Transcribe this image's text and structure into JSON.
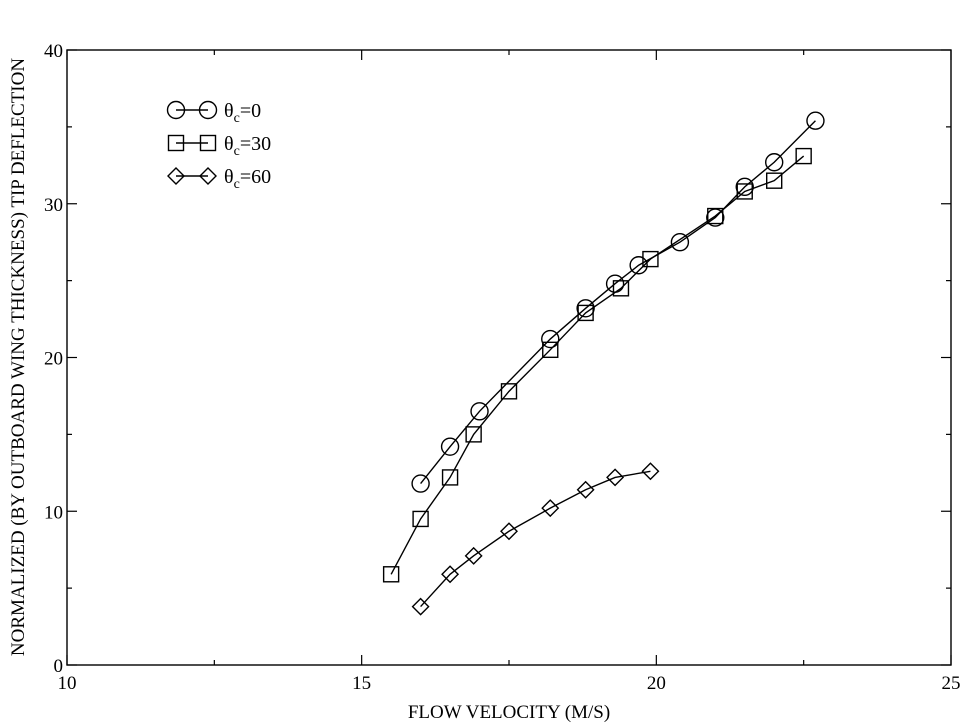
{
  "chart_data": {
    "type": "line",
    "xlabel": "FLOW VELOCITY (M/S)",
    "ylabel": "NORMALIZED (BY OUTBOARD WING THICKNESS) TIP DEFLECTION",
    "xlim": [
      10,
      25
    ],
    "ylim": [
      0,
      40
    ],
    "x_ticks": [
      "10",
      "15",
      "20",
      "25"
    ],
    "y_ticks": [
      "0",
      "10",
      "20",
      "30",
      "40"
    ],
    "x_tick_values": [
      10,
      15,
      20,
      25
    ],
    "y_tick_values": [
      0,
      10,
      20,
      30,
      40
    ],
    "grid": false,
    "legend_position": "top-left",
    "series": [
      {
        "name": "θ_c=0",
        "legend_main": "θ",
        "legend_sub": "c",
        "legend_rest": "=0",
        "marker": "circle",
        "x": [
          16.0,
          16.5,
          17.0,
          18.2,
          18.8,
          19.3,
          19.7,
          20.4,
          21.0,
          21.5,
          22.0,
          22.7
        ],
        "y": [
          11.8,
          14.2,
          16.5,
          21.2,
          23.2,
          24.8,
          26.0,
          27.5,
          29.1,
          31.1,
          32.7,
          35.4
        ]
      },
      {
        "name": "θ_c=30",
        "legend_main": "θ",
        "legend_sub": "c",
        "legend_rest": "=30",
        "marker": "square",
        "x": [
          15.5,
          16.0,
          16.5,
          16.9,
          17.5,
          18.2,
          18.8,
          19.4,
          19.9,
          21.0,
          21.5,
          22.0,
          22.5
        ],
        "y": [
          5.9,
          9.5,
          12.2,
          15.0,
          17.8,
          20.5,
          22.9,
          24.5,
          26.4,
          29.2,
          30.8,
          31.5,
          33.1
        ]
      },
      {
        "name": "θ_c=60",
        "legend_main": "θ",
        "legend_sub": "c",
        "legend_rest": "=60",
        "marker": "diamond",
        "x": [
          16.0,
          16.5,
          16.9,
          17.5,
          18.2,
          18.8,
          19.3,
          19.9
        ],
        "y": [
          3.8,
          5.9,
          7.1,
          8.7,
          10.2,
          11.4,
          12.2,
          12.6
        ]
      }
    ]
  }
}
